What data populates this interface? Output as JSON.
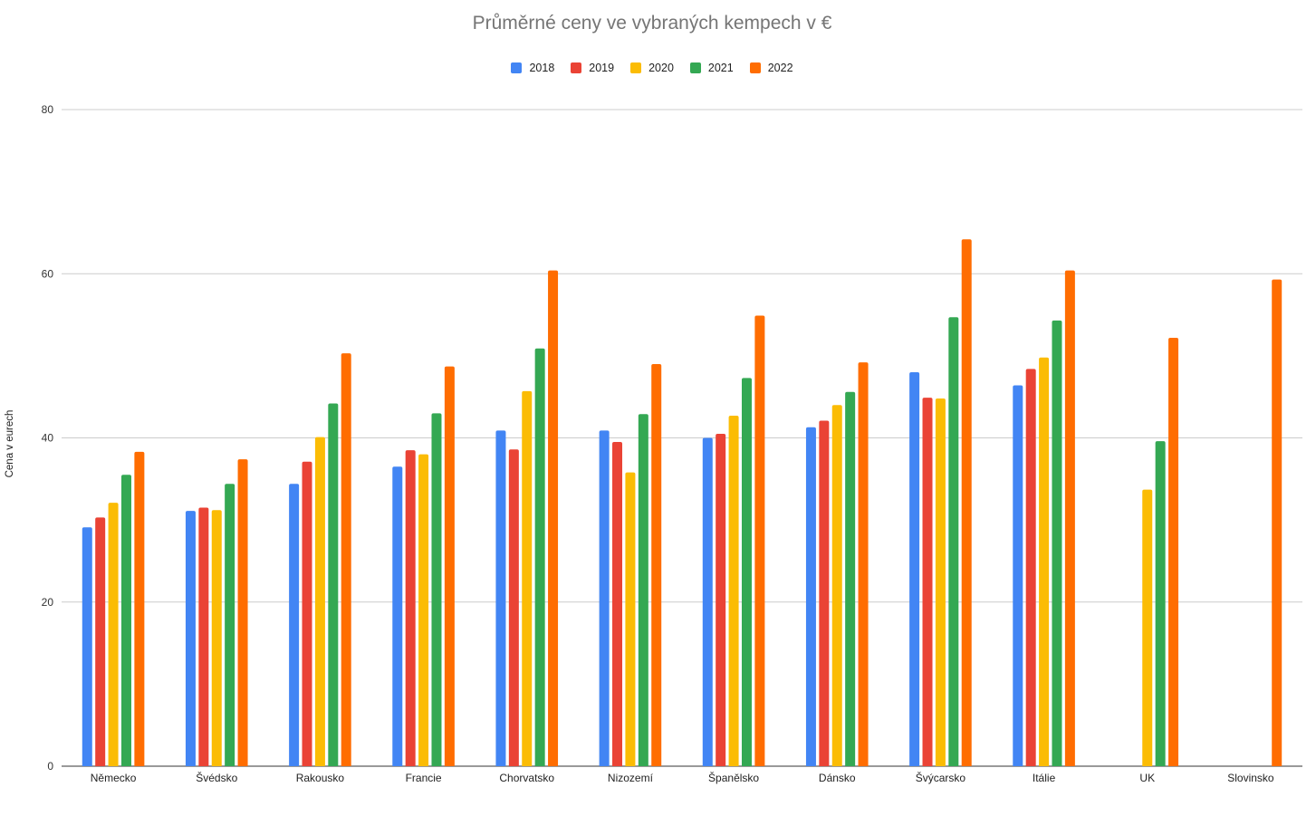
{
  "chart_data": {
    "type": "bar",
    "title": "Průměrné ceny ve vybraných  kempech v €",
    "xlabel": "",
    "ylabel": "Cena v eurech",
    "ylim": [
      0,
      80
    ],
    "yticks": [
      0,
      20,
      40,
      60,
      80
    ],
    "grid": true,
    "legend_position": "top",
    "categories": [
      "Německo",
      "Švédsko",
      "Rakousko",
      "Francie",
      "Chorvatsko",
      "Nizozemí",
      "Španělsko",
      "Dánsko",
      "Švýcarsko",
      "Itálie",
      "UK",
      "Slovinsko"
    ],
    "series": [
      {
        "name": "2018",
        "color": "#4285f4",
        "values": [
          29.1,
          31.1,
          34.4,
          36.5,
          40.9,
          40.9,
          40.0,
          41.3,
          48.0,
          46.4,
          null,
          null
        ]
      },
      {
        "name": "2019",
        "color": "#ea4335",
        "values": [
          30.3,
          31.5,
          37.1,
          38.5,
          38.6,
          39.5,
          40.5,
          42.1,
          44.9,
          48.4,
          null,
          null
        ]
      },
      {
        "name": "2020",
        "color": "#fbbc04",
        "values": [
          32.1,
          31.2,
          40.1,
          38.0,
          45.7,
          35.8,
          42.7,
          44.0,
          44.8,
          49.8,
          33.7,
          null
        ]
      },
      {
        "name": "2021",
        "color": "#34a853",
        "values": [
          35.5,
          34.4,
          44.2,
          43.0,
          50.9,
          42.9,
          47.3,
          45.6,
          54.7,
          54.3,
          39.6,
          null
        ]
      },
      {
        "name": "2022",
        "color": "#ff6d01",
        "values": [
          38.3,
          37.4,
          50.3,
          48.7,
          60.4,
          49.0,
          54.9,
          49.2,
          64.2,
          60.4,
          52.2,
          59.3
        ]
      }
    ]
  }
}
